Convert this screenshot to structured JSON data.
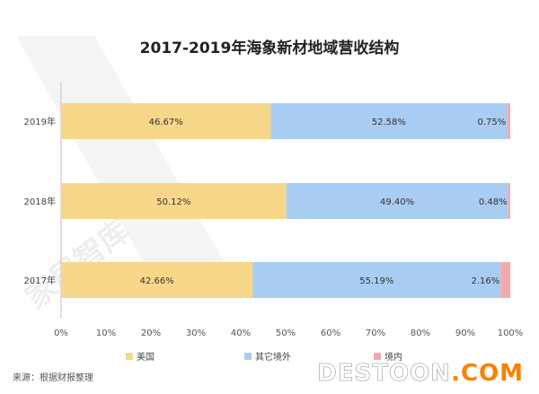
{
  "colors": {
    "美国": "#f7d88a",
    "其它境外": "#a9cdf2",
    "境内": "#f5a9ad",
    "axis": "#bfbfbf",
    "watermark_main": "#ffffff",
    "watermark_accent": "#ff7f00"
  },
  "chart_data": {
    "type": "bar",
    "orientation": "horizontal",
    "stacked": true,
    "title": "2017-2019年海象新材地域营收结构",
    "categories": [
      "2019年",
      "2018年",
      "2017年"
    ],
    "series": [
      {
        "name": "美国",
        "values": [
          46.67,
          50.12,
          42.66
        ],
        "labels": [
          "46.67%",
          "50.12%",
          "42.66%"
        ]
      },
      {
        "name": "其它境外",
        "values": [
          52.58,
          49.4,
          55.19
        ],
        "labels": [
          "52.58%",
          "49.40%",
          "55.19%"
        ]
      },
      {
        "name": "境内",
        "values": [
          0.75,
          0.48,
          2.16
        ],
        "labels": [
          "0.75%",
          "0.48%",
          "2.16%"
        ]
      }
    ],
    "xlim": [
      0,
      100
    ],
    "xticks": [
      "0%",
      "10%",
      "20%",
      "30%",
      "40%",
      "50%",
      "60%",
      "70%",
      "80%",
      "90%",
      "100%"
    ],
    "grid": false,
    "legend": "bottom"
  },
  "source": "来源：根据财报整理",
  "watermark": "DESTOON.COM",
  "bg_watermark": "家居智库"
}
